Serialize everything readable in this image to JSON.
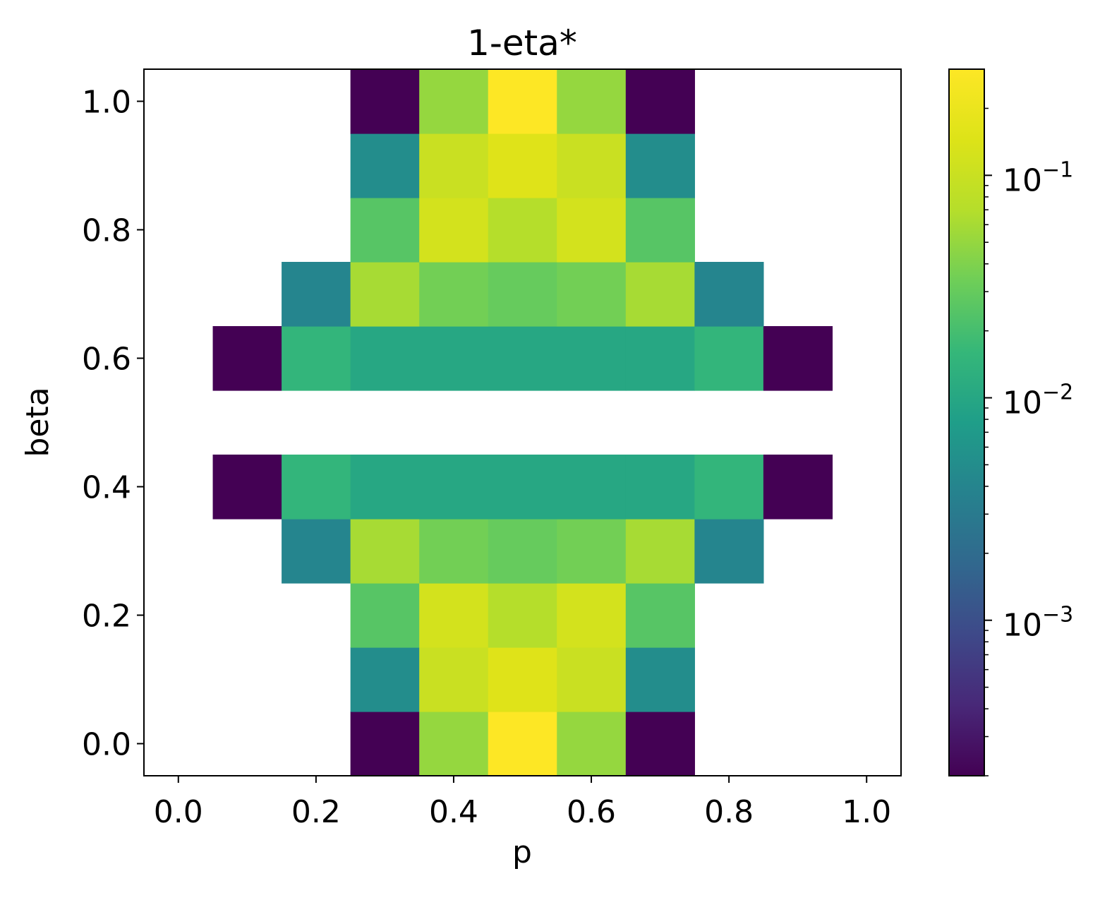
{
  "chart_data": {
    "type": "heatmap",
    "title": "1-eta*",
    "xlabel": "p",
    "ylabel": "beta",
    "x": [
      0.0,
      0.1,
      0.2,
      0.3,
      0.4,
      0.5,
      0.6,
      0.7,
      0.8,
      0.9,
      1.0
    ],
    "y": [
      0.0,
      0.1,
      0.2,
      0.3,
      0.4,
      0.5,
      0.6,
      0.7,
      0.8,
      0.9,
      1.0
    ],
    "xlim": [
      -0.05,
      1.05
    ],
    "ylim": [
      -0.05,
      1.05
    ],
    "xticks": [
      0.0,
      0.2,
      0.4,
      0.6,
      0.8,
      1.0
    ],
    "xtick_labels": [
      "0.0",
      "0.2",
      "0.4",
      "0.6",
      "0.8",
      "1.0"
    ],
    "yticks": [
      0.0,
      0.2,
      0.4,
      0.6,
      0.8,
      1.0
    ],
    "ytick_labels": [
      "0.0",
      "0.2",
      "0.4",
      "0.6",
      "0.8",
      "1.0"
    ],
    "z": [
      [
        null,
        null,
        null,
        0.0002,
        0.05,
        0.3,
        0.05,
        0.0002,
        null,
        null,
        null
      ],
      [
        null,
        null,
        null,
        0.005,
        0.1,
        0.15,
        0.1,
        0.005,
        null,
        null,
        null
      ],
      [
        null,
        null,
        null,
        0.025,
        0.12,
        0.07,
        0.12,
        0.025,
        null,
        null,
        null
      ],
      [
        null,
        null,
        0.004,
        0.06,
        0.035,
        0.03,
        0.035,
        0.06,
        0.004,
        null,
        null
      ],
      [
        null,
        0.0002,
        0.015,
        0.01,
        0.01,
        0.01,
        0.01,
        0.01,
        0.015,
        0.0002,
        null
      ],
      [
        null,
        null,
        null,
        null,
        null,
        null,
        null,
        null,
        null,
        null,
        null
      ],
      [
        null,
        0.0002,
        0.015,
        0.01,
        0.01,
        0.01,
        0.01,
        0.01,
        0.015,
        0.0002,
        null
      ],
      [
        null,
        null,
        0.004,
        0.06,
        0.035,
        0.03,
        0.035,
        0.06,
        0.004,
        null,
        null
      ],
      [
        null,
        null,
        null,
        0.025,
        0.12,
        0.07,
        0.12,
        0.025,
        null,
        null,
        null
      ],
      [
        null,
        null,
        null,
        0.005,
        0.1,
        0.15,
        0.1,
        0.005,
        null,
        null,
        null
      ],
      [
        null,
        null,
        null,
        0.0002,
        0.05,
        0.3,
        0.05,
        0.0002,
        null,
        null,
        null
      ]
    ],
    "colorbar": {
      "scale": "log",
      "colormap": "viridis",
      "range": [
        0.0002,
        0.3
      ],
      "ticks": [
        {
          "value": 0.1,
          "base": "10",
          "exponent": "−1"
        },
        {
          "value": 0.01,
          "base": "10",
          "exponent": "−2"
        },
        {
          "value": 0.001,
          "base": "10",
          "exponent": "−3"
        }
      ]
    },
    "grid": false,
    "legend": "none"
  }
}
